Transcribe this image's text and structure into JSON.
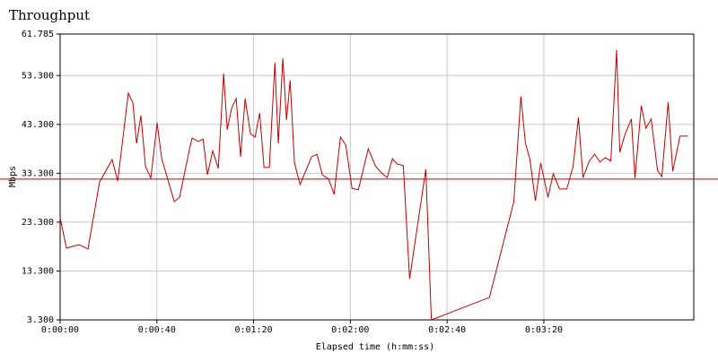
{
  "chart_data": {
    "type": "line",
    "title": "Throughput",
    "x_label": "Elapsed time (h:mm:ss)",
    "y_label": "Mbps",
    "x": [
      0,
      2.6,
      7.8,
      11.5,
      16.3,
      21.5,
      23.8,
      28.2,
      30.1,
      31.6,
      33.4,
      35.3,
      37.5,
      40.1,
      42.0,
      47.2,
      49.4,
      53.5,
      54.6,
      57.2,
      59.1,
      60.9,
      63.1,
      65.4,
      67.6,
      69.1,
      70.9,
      72.8,
      74.6,
      76.5,
      78.7,
      80.6,
      82.5,
      84.3,
      86.5,
      88.8,
      90.2,
      92.1,
      93.6,
      95.1,
      96.9,
      99.2,
      104.0,
      106.2,
      108.4,
      111.0,
      113.3,
      115.9,
      118.1,
      120.7,
      123.3,
      127.4,
      130.4,
      132.6,
      135.2,
      137.4,
      139.3,
      141.9,
      144.5,
      151.2,
      153.5,
      177.5,
      187.6,
      190.5,
      192.4,
      194.2,
      196.5,
      198.7,
      201.7,
      203.9,
      206.5,
      209.5,
      212.1,
      214.3,
      216.2,
      218.8,
      221.0,
      223.2,
      225.4,
      227.7,
      230.1,
      231.4,
      233.6,
      236.2,
      237.7,
      240.3,
      242.2,
      244.4,
      247.0,
      248.8,
      251.4,
      253.3,
      256.3,
      259.6
    ],
    "series": [
      {
        "name": "Throughput",
        "color": "#c00000",
        "values": [
          24.2,
          18.0,
          18.7,
          17.8,
          31.5,
          36.1,
          31.7,
          49.7,
          47.7,
          39.4,
          45.1,
          34.7,
          32.3,
          43.6,
          36.3,
          27.5,
          28.4,
          38.3,
          40.5,
          39.8,
          40.3,
          33.0,
          37.9,
          34.3,
          53.7,
          42.2,
          46.6,
          48.6,
          36.7,
          48.6,
          41.4,
          40.7,
          45.6,
          34.5,
          34.5,
          55.9,
          39.4,
          56.8,
          44.2,
          52.3,
          35.4,
          31.0,
          36.7,
          37.2,
          33.0,
          32.1,
          29.0,
          40.7,
          39.1,
          30.2,
          29.9,
          38.3,
          34.8,
          33.5,
          32.4,
          36.3,
          35.2,
          34.9,
          11.7,
          34.1,
          3.3,
          7.9,
          27.5,
          49.0,
          39.4,
          36.3,
          27.7,
          35.4,
          28.4,
          33.2,
          30.1,
          30.1,
          34.7,
          44.7,
          32.4,
          35.8,
          37.2,
          35.6,
          36.5,
          35.8,
          58.5,
          37.6,
          41.3,
          44.4,
          32.3,
          47.1,
          42.5,
          44.4,
          33.9,
          32.6,
          47.8,
          33.7,
          40.9,
          40.9
        ]
      }
    ],
    "reference_line": {
      "value": 32.1,
      "color": "#c00000"
    },
    "xlim": [
      0,
      262
    ],
    "ylim": [
      3.3,
      61.785
    ],
    "xticks": [
      {
        "value": 0,
        "label": "0:00:00"
      },
      {
        "value": 40,
        "label": "0:00:40"
      },
      {
        "value": 80,
        "label": "0:01:20"
      },
      {
        "value": 120,
        "label": "0:02:00"
      },
      {
        "value": 160,
        "label": "0:02:40"
      },
      {
        "value": 200,
        "label": "0:03:20"
      }
    ],
    "yticks": [
      {
        "value": 3.3,
        "label": "3.300"
      },
      {
        "value": 13.3,
        "label": "13.300"
      },
      {
        "value": 23.3,
        "label": "23.300"
      },
      {
        "value": 33.3,
        "label": "33.300"
      },
      {
        "value": 43.3,
        "label": "43.300"
      },
      {
        "value": 53.3,
        "label": "53.300"
      },
      61.785
    ],
    "grid": true
  }
}
